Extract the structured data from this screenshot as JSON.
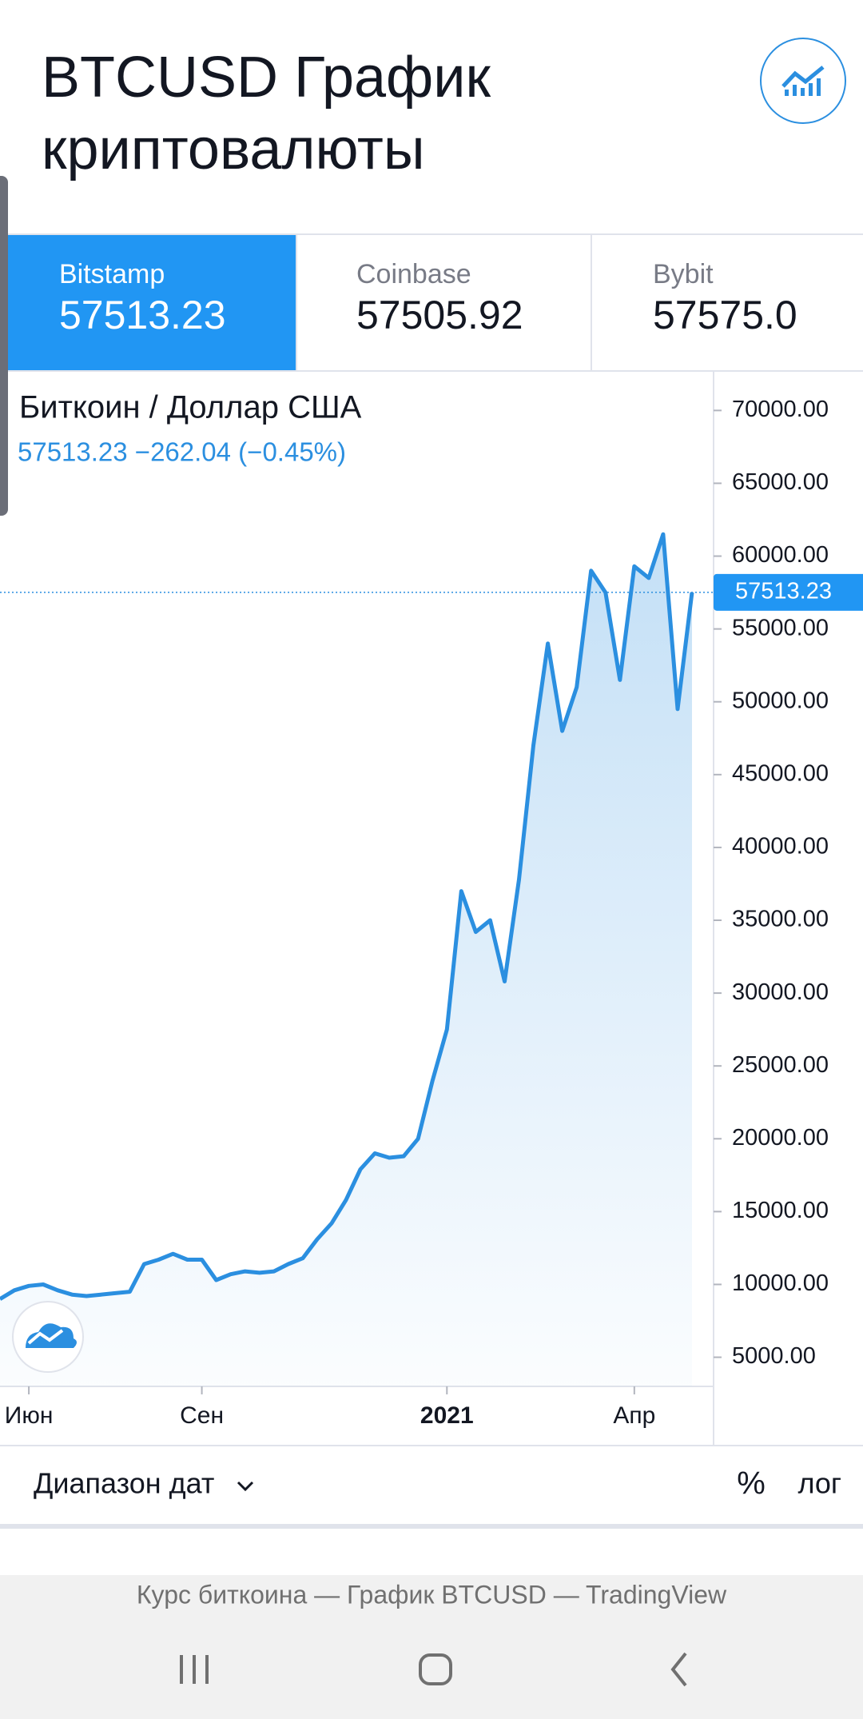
{
  "ui": {
    "title_line1": "BTCUSD График",
    "title_line2": "криптовалюты",
    "exchanges": [
      {
        "name": "Bitstamp",
        "price": "57513.23"
      },
      {
        "name": "Coinbase",
        "price": "57505.92"
      },
      {
        "name": "Bybit",
        "price": "57575.0"
      }
    ],
    "date_range": "Диапазон дат",
    "percent": "%",
    "log": "лог",
    "footer": "Курс биткоина — График BTCUSD — TradingView"
  },
  "chart_data": {
    "type": "line",
    "title": "Биткоин / Доллар США",
    "subtitle": "57513.23  −262.04 (−0.45%)",
    "categories": [
      null,
      null,
      "Июн",
      null,
      null,
      null,
      null,
      null,
      null,
      null,
      null,
      null,
      null,
      null,
      "Сен",
      null,
      null,
      null,
      null,
      null,
      null,
      null,
      null,
      null,
      null,
      null,
      null,
      null,
      null,
      null,
      null,
      "2021",
      null,
      null,
      null,
      null,
      null,
      null,
      null,
      null,
      null,
      null,
      null,
      null,
      "Апр",
      null,
      null,
      null,
      null
    ],
    "series": [
      {
        "color": "#2b8fe0",
        "values": [
          9000,
          9600,
          9900,
          10000,
          9600,
          9300,
          9200,
          9300,
          9400,
          9500,
          11400,
          11700,
          12100,
          11700,
          11700,
          10300,
          10700,
          10900,
          10800,
          10900,
          11400,
          11800,
          13100,
          14200,
          15800,
          17900,
          19000,
          18700,
          18800,
          20000,
          24000,
          27500,
          37000,
          34200,
          35000,
          30800,
          37800,
          47000,
          54000,
          48000,
          51000,
          59000,
          57500,
          51500,
          59300,
          58500,
          61500,
          49500,
          57513.23
        ]
      }
    ],
    "last_price": 57513.23,
    "ylim": [
      3000,
      72600
    ],
    "yticks": [
      {
        "value": 5000,
        "label": "5000.00"
      },
      {
        "value": 10000,
        "label": "10000.00"
      },
      {
        "value": 15000,
        "label": "15000.00"
      },
      {
        "value": 20000,
        "label": "20000.00"
      },
      {
        "value": 25000,
        "label": "25000.00"
      },
      {
        "value": 30000,
        "label": "30000.00"
      },
      {
        "value": 35000,
        "label": "35000.00"
      },
      {
        "value": 40000,
        "label": "40000.00"
      },
      {
        "value": 45000,
        "label": "45000.00"
      },
      {
        "value": 50000,
        "label": "50000.00"
      },
      {
        "value": 55000,
        "label": "55000.00"
      },
      {
        "value": 60000,
        "label": "60000.00"
      },
      {
        "value": 65000,
        "label": "65000.00"
      },
      {
        "value": 70000,
        "label": "70000.00"
      }
    ]
  }
}
